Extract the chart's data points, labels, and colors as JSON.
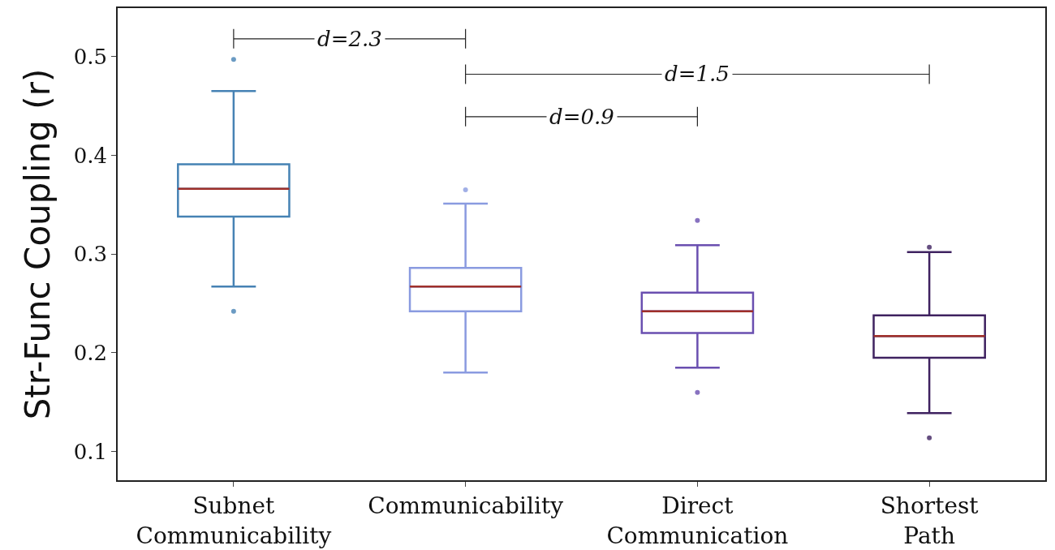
{
  "chart_data": {
    "type": "box",
    "ylabel": "Str-Func Coupling (r)",
    "categories": [
      "Subnet Communicability",
      "Communicability",
      "Direct Communication",
      "Shortest Path"
    ],
    "boxes": [
      {
        "low": 0.267,
        "q1": 0.338,
        "median": 0.366,
        "q3": 0.391,
        "high": 0.465,
        "outliers": [
          0.497,
          0.242
        ]
      },
      {
        "low": 0.18,
        "q1": 0.242,
        "median": 0.267,
        "q3": 0.286,
        "high": 0.351,
        "outliers": [
          0.365
        ]
      },
      {
        "low": 0.185,
        "q1": 0.22,
        "median": 0.242,
        "q3": 0.261,
        "high": 0.309,
        "outliers": [
          0.334,
          0.16
        ]
      },
      {
        "low": 0.139,
        "q1": 0.195,
        "median": 0.217,
        "q3": 0.238,
        "high": 0.302,
        "outliers": [
          0.307,
          0.114
        ]
      }
    ],
    "colors": [
      "#4682b4",
      "#8a9be0",
      "#6a4fb0",
      "#3f2260"
    ],
    "ylim": [
      0.071,
      0.549
    ],
    "yticks": [
      0.1,
      0.2,
      0.3,
      0.4,
      0.5
    ],
    "annotations": [
      "d=2.3",
      "d=1.5",
      "d=0.9"
    ],
    "grid": false
  }
}
